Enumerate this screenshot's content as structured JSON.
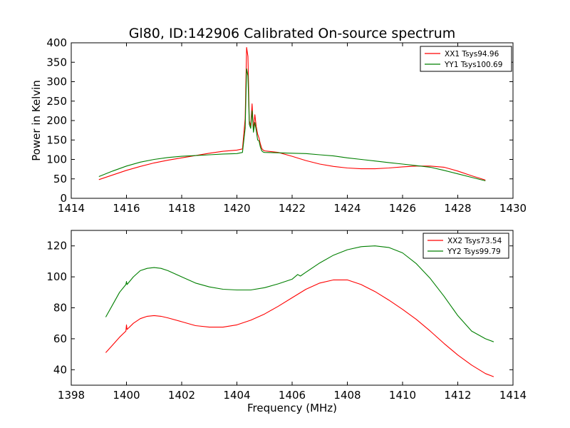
{
  "title": "Gl80, ID:142906 Calibrated On-source spectrum",
  "colors": {
    "red": "#ff0000",
    "green": "#007f00",
    "frame": "#000000"
  },
  "chart_data": [
    {
      "type": "line",
      "ylabel": "Power in Kelvin",
      "xlabel": "",
      "xlim": [
        1414,
        1430
      ],
      "ylim": [
        0,
        400
      ],
      "xticks": [
        1414,
        1416,
        1418,
        1420,
        1422,
        1424,
        1426,
        1428,
        1430
      ],
      "yticks": [
        0,
        50,
        100,
        150,
        200,
        250,
        300,
        350,
        400
      ],
      "legend": {
        "placement": "top-right"
      },
      "series": [
        {
          "name": "XX1 Tsys94.96",
          "color": "#ff0000",
          "x": [
            1415.0,
            1415.5,
            1416.0,
            1416.5,
            1417.0,
            1417.5,
            1418.0,
            1418.5,
            1419.0,
            1419.5,
            1420.0,
            1420.2,
            1420.3,
            1420.35,
            1420.4,
            1420.45,
            1420.5,
            1420.55,
            1420.6,
            1420.65,
            1420.7,
            1420.75,
            1420.8,
            1420.85,
            1420.9,
            1420.95,
            1421.0,
            1421.5,
            1422.0,
            1422.5,
            1423.0,
            1423.5,
            1424.0,
            1424.5,
            1425.0,
            1425.5,
            1426.0,
            1426.5,
            1427.0,
            1427.5,
            1428.0,
            1428.5,
            1429.0
          ],
          "y": [
            48,
            60,
            72,
            82,
            91,
            98,
            104,
            110,
            116,
            121,
            124,
            127,
            205,
            388,
            365,
            200,
            185,
            243,
            175,
            215,
            185,
            165,
            155,
            140,
            128,
            124,
            122,
            118,
            108,
            97,
            88,
            82,
            78,
            76,
            76,
            78,
            81,
            83,
            83,
            80,
            70,
            58,
            47
          ]
        },
        {
          "name": "YY1 Tsys100.69",
          "color": "#007f00",
          "x": [
            1415.0,
            1415.5,
            1416.0,
            1416.5,
            1417.0,
            1417.5,
            1418.0,
            1418.5,
            1419.0,
            1419.5,
            1420.0,
            1420.2,
            1420.3,
            1420.35,
            1420.4,
            1420.45,
            1420.5,
            1420.55,
            1420.6,
            1420.65,
            1420.7,
            1420.75,
            1420.8,
            1420.85,
            1420.9,
            1420.95,
            1421.0,
            1421.5,
            1422.0,
            1422.5,
            1423.0,
            1423.5,
            1424.0,
            1424.5,
            1425.0,
            1425.5,
            1426.0,
            1426.5,
            1427.0,
            1427.5,
            1428.0,
            1428.5,
            1429.0
          ],
          "y": [
            56,
            70,
            83,
            93,
            100,
            105,
            108,
            110,
            112,
            114,
            115,
            118,
            180,
            333,
            315,
            190,
            180,
            225,
            170,
            195,
            175,
            150,
            148,
            132,
            122,
            119,
            118,
            117,
            116,
            115,
            112,
            109,
            104,
            100,
            96,
            92,
            88,
            84,
            80,
            72,
            63,
            54,
            45
          ]
        }
      ]
    },
    {
      "type": "line",
      "xlabel": "Frequency (MHz)",
      "ylabel": "",
      "xlim": [
        1398,
        1414
      ],
      "ylim": [
        30,
        130
      ],
      "xticks": [
        1398,
        1400,
        1402,
        1404,
        1406,
        1408,
        1410,
        1412,
        1414
      ],
      "yticks": [
        40,
        60,
        80,
        100,
        120
      ],
      "legend": {
        "placement": "top-right"
      },
      "series": [
        {
          "name": "XX2 Tsys73.54",
          "color": "#ff0000",
          "x": [
            1399.25,
            1399.5,
            1399.75,
            1399.98,
            1400.0,
            1400.02,
            1400.25,
            1400.5,
            1400.75,
            1401.0,
            1401.25,
            1401.5,
            1402.0,
            1402.5,
            1403.0,
            1403.5,
            1404.0,
            1404.5,
            1405.0,
            1405.5,
            1406.0,
            1406.5,
            1407.0,
            1407.5,
            1408.0,
            1408.5,
            1409.0,
            1409.5,
            1410.0,
            1410.5,
            1411.0,
            1411.5,
            1412.0,
            1412.5,
            1413.0,
            1413.3
          ],
          "y": [
            51,
            56,
            61,
            65,
            69,
            66,
            70,
            73,
            74.5,
            75,
            74.5,
            73.5,
            71,
            68.5,
            67.5,
            67.5,
            69,
            72,
            76,
            81,
            86.5,
            92,
            96,
            98,
            98,
            95,
            90.5,
            85,
            79,
            72.5,
            65,
            57,
            49.5,
            43,
            37.5,
            35.5
          ]
        },
        {
          "name": "YY2 Tsys99.79",
          "color": "#007f00",
          "x": [
            1399.25,
            1399.5,
            1399.75,
            1399.98,
            1400.0,
            1400.02,
            1400.25,
            1400.5,
            1400.75,
            1401.0,
            1401.25,
            1401.5,
            1402.0,
            1402.5,
            1403.0,
            1403.5,
            1404.0,
            1404.5,
            1405.0,
            1405.5,
            1406.0,
            1406.2,
            1406.3,
            1406.5,
            1407.0,
            1407.5,
            1408.0,
            1408.5,
            1409.0,
            1409.5,
            1410.0,
            1410.5,
            1411.0,
            1411.5,
            1412.0,
            1412.5,
            1413.0,
            1413.3
          ],
          "y": [
            74,
            82,
            90,
            95,
            97,
            95,
            100,
            104,
            105.5,
            106,
            105.5,
            104,
            100,
            96,
            93.5,
            92,
            91.5,
            91.5,
            93,
            95.5,
            98.5,
            101.5,
            100.5,
            103,
            109,
            114,
            117.5,
            119.5,
            120,
            119,
            115.5,
            108.5,
            99,
            87.5,
            75,
            65,
            60,
            58
          ]
        }
      ]
    }
  ]
}
